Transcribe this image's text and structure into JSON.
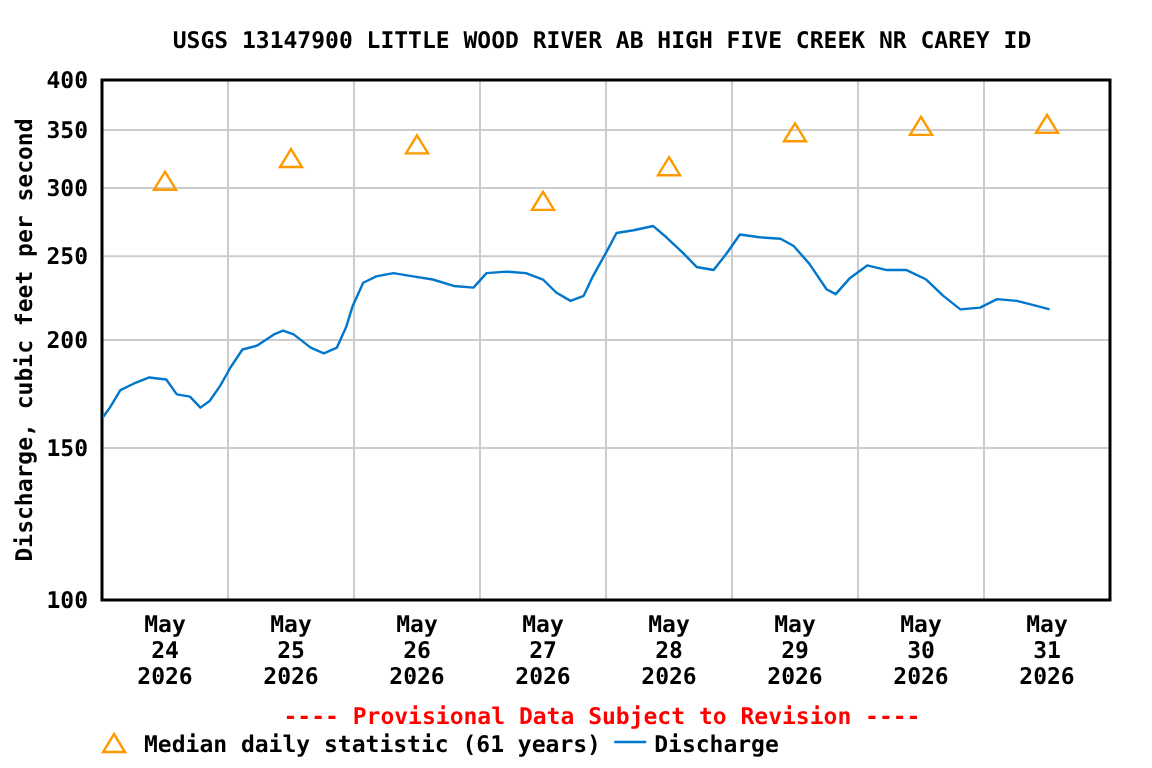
{
  "chart_data": {
    "type": "line",
    "title": "USGS 13147900 LITTLE WOOD RIVER AB HIGH FIVE CREEK NR CAREY ID",
    "ylabel": "Discharge, cubic feet per second",
    "annotations": [
      "---- Provisional Data Subject to Revision ----"
    ],
    "log": "y",
    "grid": true,
    "legend": "bottom",
    "xlim": [
      "2026-05-24T00:00",
      "2026-06-01T00:00"
    ],
    "xticks": [
      {
        "value": "2026-05-24T12:00",
        "label": "May\n24\n2026"
      },
      {
        "value": "2026-05-25T00:00",
        "label": null
      },
      {
        "value": "2026-05-25T12:00",
        "label": "May\n25\n2026"
      },
      {
        "value": "2026-05-26T00:00",
        "label": null
      },
      {
        "value": "2026-05-26T12:00",
        "label": "May\n26\n2026"
      },
      {
        "value": "2026-05-27T00:00",
        "label": null
      },
      {
        "value": "2026-05-27T12:00",
        "label": "May\n27\n2026"
      },
      {
        "value": "2026-05-28T00:00",
        "label": null
      },
      {
        "value": "2026-05-28T12:00",
        "label": "May\n28\n2026"
      },
      {
        "value": "2026-05-29T00:00",
        "label": null
      },
      {
        "value": "2026-05-29T12:00",
        "label": "May\n29\n2026"
      },
      {
        "value": "2026-05-30T00:00",
        "label": null
      },
      {
        "value": "2026-05-30T12:00",
        "label": "May\n30\n2026"
      },
      {
        "value": "2026-05-31T00:00",
        "label": null
      },
      {
        "value": "2026-05-31T12:00",
        "label": "May\n31\n2026"
      }
    ],
    "ylim": [
      100,
      400
    ],
    "yticks": [
      100,
      150,
      200,
      250,
      300,
      350,
      400
    ],
    "series": [
      {
        "name": "Median daily statistic (61 years)",
        "type": "scatter",
        "marker": "triangle",
        "color": "#ff9900",
        "x": [
          "2026-05-24T12:00",
          "2026-05-25T12:00",
          "2026-05-26T12:00",
          "2026-05-27T12:00",
          "2026-05-28T12:00",
          "2026-05-29T12:00",
          "2026-05-30T12:00",
          "2026-05-31T12:00"
        ],
        "values": [
          305,
          324,
          336,
          289,
          317,
          347,
          353,
          355
        ]
      },
      {
        "name": "Discharge",
        "color": "#0077cc",
        "x": [
          "2026-05-24T00:15",
          "2026-05-24T01:30",
          "2026-05-24T03:30",
          "2026-05-24T06:00",
          "2026-05-24T09:00",
          "2026-05-24T12:15",
          "2026-05-24T14:15",
          "2026-05-24T16:45",
          "2026-05-24T18:45",
          "2026-05-24T20:30",
          "2026-05-24T22:30",
          "2026-05-25T00:30",
          "2026-05-25T02:45",
          "2026-05-25T05:30",
          "2026-05-25T08:45",
          "2026-05-25T10:30",
          "2026-05-25T12:30",
          "2026-05-25T15:45",
          "2026-05-25T18:15",
          "2026-05-25T20:45",
          "2026-05-25T22:30",
          "2026-05-25T23:45",
          "2026-05-26T01:45",
          "2026-05-26T04:15",
          "2026-05-26T07:30",
          "2026-05-26T11:15",
          "2026-05-26T15:00",
          "2026-05-26T19:00",
          "2026-05-26T22:45",
          "2026-05-27T01:15",
          "2026-05-27T05:00",
          "2026-05-27T08:45",
          "2026-05-27T12:00",
          "2026-05-27T14:30",
          "2026-05-27T17:15",
          "2026-05-27T19:45",
          "2026-05-27T21:30",
          "2026-05-28T00:15",
          "2026-05-28T02:00",
          "2026-05-28T05:15",
          "2026-05-28T09:00",
          "2026-05-28T11:30",
          "2026-05-28T14:45",
          "2026-05-28T17:15",
          "2026-05-28T20:30",
          "2026-05-28T23:00",
          "2026-05-29T01:30",
          "2026-05-29T05:15",
          "2026-05-29T09:15",
          "2026-05-29T11:45",
          "2026-05-29T14:45",
          "2026-05-29T18:00",
          "2026-05-29T19:45",
          "2026-05-29T22:30",
          "2026-05-30T01:45",
          "2026-05-30T05:30",
          "2026-05-30T09:15",
          "2026-05-30T13:00",
          "2026-05-30T16:15",
          "2026-05-30T19:30",
          "2026-05-30T23:15",
          "2026-05-31T02:30",
          "2026-05-31T06:15",
          "2026-05-31T10:00",
          "2026-05-31T12:30"
        ],
        "values": [
          163,
          167,
          175,
          178,
          181,
          180,
          173,
          172,
          167,
          170,
          177,
          186,
          195,
          197,
          203,
          205,
          203,
          196,
          193,
          196,
          207,
          219,
          233,
          237,
          239,
          237,
          235,
          231,
          230,
          239,
          240,
          239,
          235,
          227,
          222,
          225,
          237,
          254,
          266,
          268,
          271,
          263,
          252,
          243,
          241,
          252,
          265,
          263,
          262,
          257,
          245,
          229,
          226,
          236,
          244,
          241,
          241,
          235,
          225,
          217,
          218,
          223,
          222,
          219,
          217
        ]
      }
    ]
  }
}
